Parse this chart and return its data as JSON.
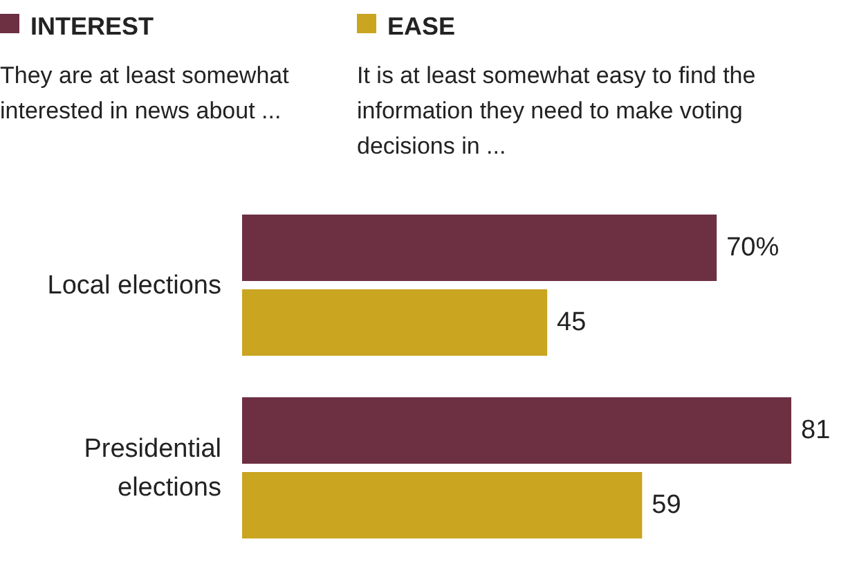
{
  "chart_data": {
    "type": "bar",
    "orientation": "horizontal",
    "categories": [
      "Local elections",
      "Presidential elections"
    ],
    "series": [
      {
        "name": "INTEREST",
        "color": "#6d2f42",
        "values": [
          70,
          81
        ],
        "value_labels": [
          "70%",
          "81"
        ]
      },
      {
        "name": "EASE",
        "color": "#c9a520",
        "values": [
          45,
          59
        ],
        "value_labels": [
          "45",
          "59"
        ]
      }
    ],
    "annotations": [
      "They are at least somewhat interested in news about ...",
      "It is at least somewhat easy to find the information they need to make voting decisions in ..."
    ],
    "legend": "top"
  }
}
